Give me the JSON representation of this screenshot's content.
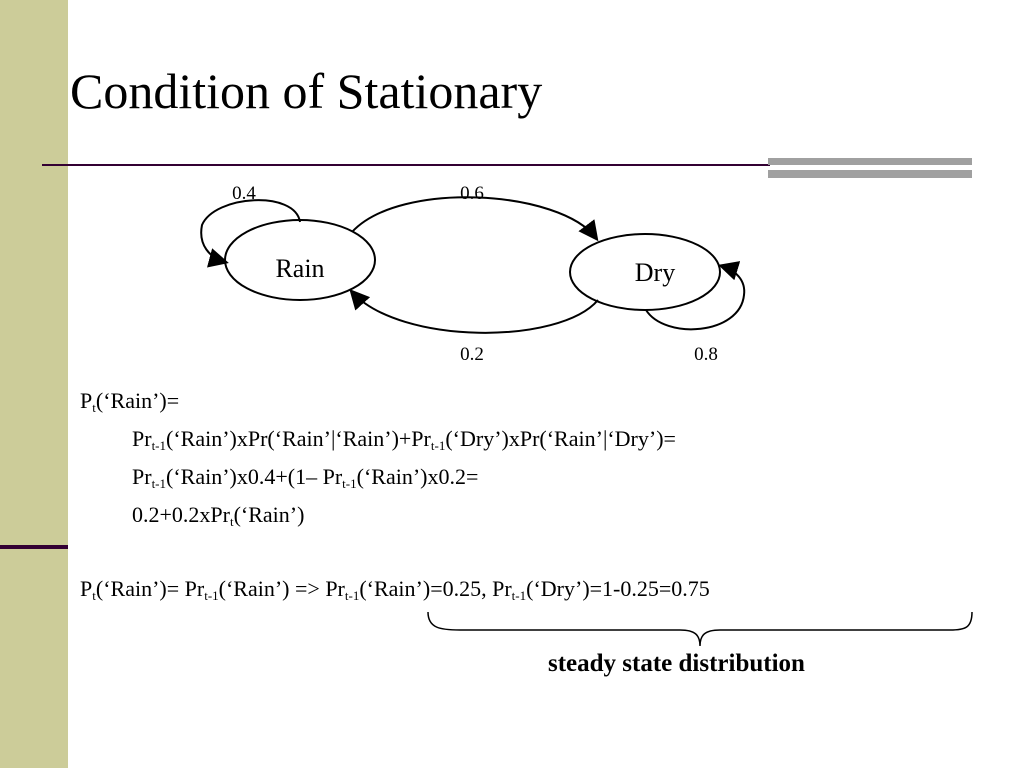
{
  "header": {
    "title": "Condition of Stationary"
  },
  "diagram": {
    "nodes": [
      {
        "label": "Rain"
      },
      {
        "label": "Dry"
      }
    ],
    "edges": [
      {
        "label": "0.4"
      },
      {
        "label": "0.6"
      },
      {
        "label": "0.2"
      },
      {
        "label": "0.8"
      }
    ]
  },
  "equations": [
    [
      "P",
      "t",
      "(‘Rain’)="
    ],
    [
      "Pr",
      "t-1",
      "(‘Rain’)xPr(‘Rain’|‘Rain’)+Pr",
      "t-1",
      "(‘Dry’)xPr(‘Rain’|‘Dry’)="
    ],
    [
      "Pr",
      "t-1",
      "(‘Rain’)x0.4+(1– Pr",
      "t-1",
      "(‘Rain’)x0.2="
    ],
    [
      "0.2+0.2xPr",
      "t",
      "(‘Rain’)"
    ],
    [
      "P",
      "t",
      "(‘Rain’)= Pr",
      "t-1",
      "(‘Rain’) => Pr",
      "t-1",
      "(‘Rain’)=0.25, Pr",
      "t-1",
      "(‘Dry’)=1-0.25=0.75"
    ]
  ],
  "note": "steady state distribution"
}
